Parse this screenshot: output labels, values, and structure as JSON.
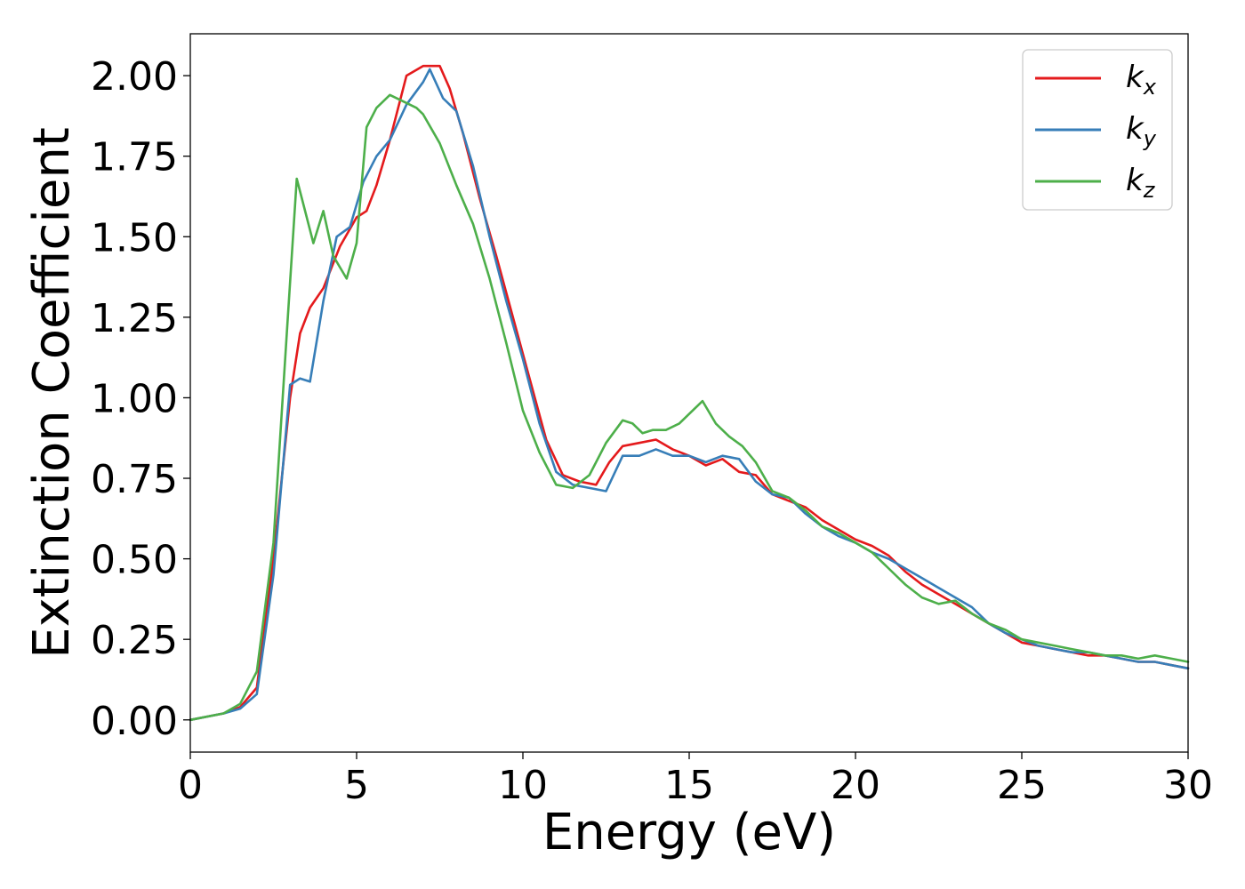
{
  "chart_data": {
    "type": "line",
    "xlabel": "Energy (eV)",
    "ylabel": "Extinction Coefficient",
    "xlim": [
      0,
      30
    ],
    "ylim": [
      -0.1,
      2.13
    ],
    "xticks": [
      "0",
      "5",
      "10",
      "15",
      "20",
      "25",
      "30"
    ],
    "yticks": [
      "0.00",
      "0.25",
      "0.50",
      "0.75",
      "1.00",
      "1.25",
      "1.50",
      "1.75",
      "2.00"
    ],
    "grid": false,
    "legend_position": "top-right",
    "series": [
      {
        "name": "kx",
        "name_base": "k",
        "name_sub": "x",
        "color": "#e41a1c",
        "x": [
          0,
          0.5,
          1,
          1.5,
          2,
          2.5,
          3,
          3.3,
          3.6,
          4,
          4.5,
          5,
          5.3,
          5.6,
          6,
          6.5,
          7,
          7.5,
          7.8,
          8.2,
          8.7,
          9.2,
          9.7,
          10.2,
          10.7,
          11.2,
          11.7,
          12.2,
          12.6,
          13,
          13.5,
          14,
          14.5,
          15,
          15.5,
          16,
          16.5,
          17,
          17.5,
          18,
          18.5,
          19,
          19.5,
          20,
          20.5,
          21,
          21.5,
          22,
          22.5,
          23,
          23.5,
          24,
          24.5,
          25,
          25.5,
          26,
          26.5,
          27,
          27.5,
          28,
          28.5,
          29,
          29.5,
          30
        ],
        "values": [
          0,
          0.01,
          0.02,
          0.04,
          0.1,
          0.5,
          1.0,
          1.2,
          1.28,
          1.34,
          1.47,
          1.56,
          1.58,
          1.66,
          1.8,
          2.0,
          2.03,
          2.03,
          1.96,
          1.82,
          1.62,
          1.44,
          1.25,
          1.06,
          0.87,
          0.76,
          0.74,
          0.73,
          0.8,
          0.85,
          0.86,
          0.87,
          0.84,
          0.82,
          0.79,
          0.81,
          0.77,
          0.76,
          0.7,
          0.68,
          0.66,
          0.62,
          0.59,
          0.56,
          0.54,
          0.51,
          0.46,
          0.42,
          0.39,
          0.36,
          0.33,
          0.3,
          0.27,
          0.24,
          0.23,
          0.22,
          0.21,
          0.2,
          0.2,
          0.19,
          0.18,
          0.18,
          0.17,
          0.16
        ]
      },
      {
        "name": "ky",
        "name_base": "k",
        "name_sub": "y",
        "color": "#377eb8",
        "x": [
          0,
          0.5,
          1,
          1.5,
          2,
          2.5,
          3,
          3.3,
          3.6,
          4,
          4.4,
          4.8,
          5.2,
          5.6,
          6,
          6.5,
          7,
          7.2,
          7.6,
          8,
          8.5,
          9,
          9.5,
          10,
          10.5,
          11,
          11.5,
          12,
          12.5,
          13,
          13.5,
          14,
          14.5,
          15,
          15.5,
          16,
          16.5,
          17,
          17.5,
          18,
          18.5,
          19,
          19.5,
          20,
          20.5,
          21,
          21.5,
          22,
          22.5,
          23,
          23.5,
          24,
          24.5,
          25,
          25.5,
          26,
          26.5,
          27,
          27.5,
          28,
          28.5,
          29,
          29.5,
          30
        ],
        "values": [
          0,
          0.01,
          0.02,
          0.035,
          0.08,
          0.45,
          1.04,
          1.06,
          1.05,
          1.3,
          1.5,
          1.53,
          1.67,
          1.75,
          1.8,
          1.91,
          1.98,
          2.02,
          1.93,
          1.89,
          1.72,
          1.5,
          1.3,
          1.12,
          0.92,
          0.77,
          0.73,
          0.72,
          0.71,
          0.82,
          0.82,
          0.84,
          0.82,
          0.82,
          0.8,
          0.82,
          0.81,
          0.74,
          0.7,
          0.69,
          0.64,
          0.6,
          0.57,
          0.55,
          0.52,
          0.5,
          0.47,
          0.44,
          0.41,
          0.38,
          0.35,
          0.3,
          0.27,
          0.25,
          0.23,
          0.22,
          0.21,
          0.21,
          0.2,
          0.19,
          0.18,
          0.18,
          0.17,
          0.16
        ]
      },
      {
        "name": "kz",
        "name_base": "k",
        "name_sub": "z",
        "color": "#4daf4a",
        "x": [
          0,
          0.5,
          1,
          1.5,
          2,
          2.5,
          2.9,
          3.2,
          3.4,
          3.7,
          4,
          4.3,
          4.7,
          5,
          5.3,
          5.6,
          6,
          6.4,
          6.8,
          7,
          7.5,
          8,
          8.5,
          9,
          9.5,
          10,
          10.5,
          11,
          11.5,
          12,
          12.5,
          13,
          13.3,
          13.6,
          13.9,
          14.3,
          14.7,
          15,
          15.4,
          15.8,
          16.2,
          16.6,
          17,
          17.5,
          18,
          18.5,
          19,
          19.5,
          20,
          20.5,
          21,
          21.5,
          22,
          22.5,
          23,
          23.5,
          24,
          24.5,
          25,
          25.5,
          26,
          26.5,
          27,
          27.5,
          28,
          28.5,
          29,
          29.5,
          30
        ],
        "values": [
          0,
          0.01,
          0.02,
          0.05,
          0.15,
          0.55,
          1.2,
          1.68,
          1.6,
          1.48,
          1.58,
          1.44,
          1.37,
          1.48,
          1.84,
          1.9,
          1.94,
          1.92,
          1.9,
          1.88,
          1.79,
          1.66,
          1.54,
          1.37,
          1.17,
          0.96,
          0.83,
          0.73,
          0.72,
          0.76,
          0.86,
          0.93,
          0.92,
          0.89,
          0.9,
          0.9,
          0.92,
          0.95,
          0.99,
          0.92,
          0.88,
          0.85,
          0.8,
          0.71,
          0.69,
          0.65,
          0.6,
          0.58,
          0.55,
          0.52,
          0.47,
          0.42,
          0.38,
          0.36,
          0.37,
          0.33,
          0.3,
          0.28,
          0.25,
          0.24,
          0.23,
          0.22,
          0.21,
          0.2,
          0.2,
          0.19,
          0.2,
          0.19,
          0.18
        ]
      }
    ]
  }
}
